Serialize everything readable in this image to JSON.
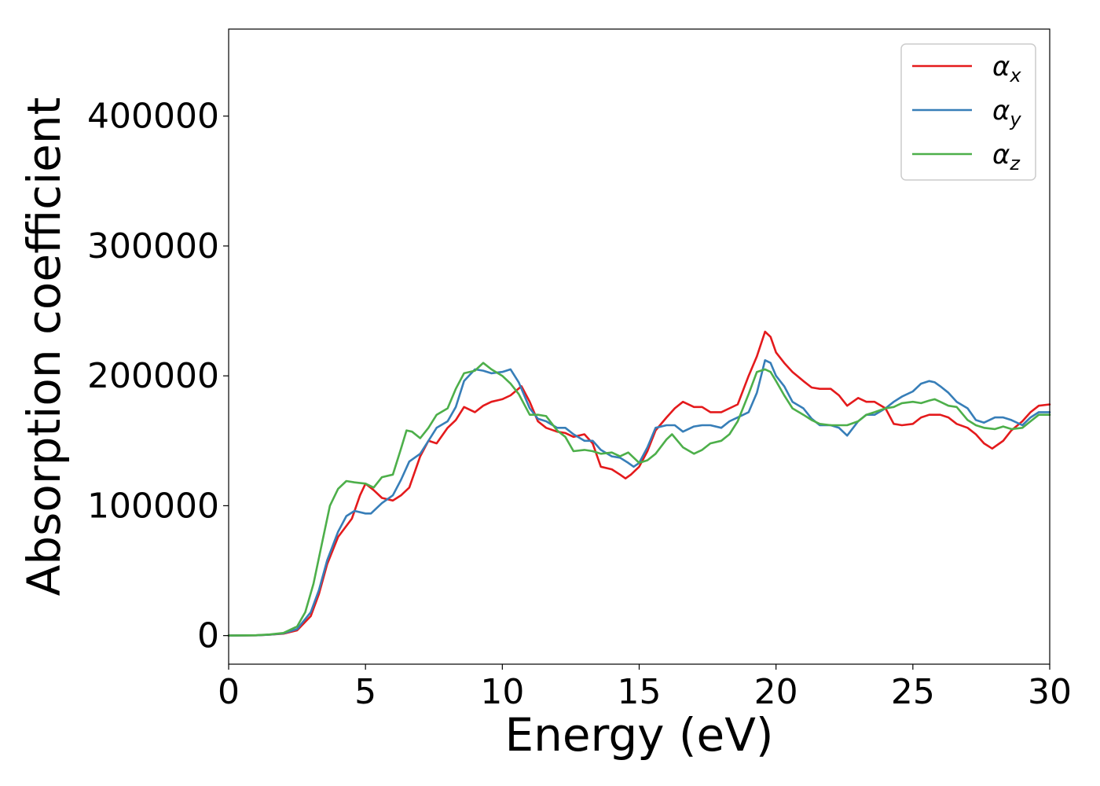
{
  "chart_data": {
    "type": "line",
    "title": "",
    "xlabel": "Energy (eV)",
    "ylabel": "Absorption coefficient",
    "xlim": [
      0,
      30
    ],
    "ylim": [
      -22000,
      467000
    ],
    "xticks": [
      0,
      5,
      10,
      15,
      20,
      25,
      30
    ],
    "yticks": [
      0,
      100000,
      200000,
      300000,
      400000
    ],
    "grid": false,
    "legend_position": "top-right",
    "series": [
      {
        "name": "αx",
        "legend_base": "α",
        "legend_sub": "x",
        "color": "#e41a1c",
        "points": [
          [
            0,
            0
          ],
          [
            1,
            200
          ],
          [
            1.5,
            700
          ],
          [
            2,
            1500
          ],
          [
            2.5,
            4000
          ],
          [
            3,
            15000
          ],
          [
            3.3,
            32000
          ],
          [
            3.6,
            55000
          ],
          [
            4,
            76000
          ],
          [
            4.5,
            90000
          ],
          [
            4.8,
            108000
          ],
          [
            5,
            117000
          ],
          [
            5.3,
            112000
          ],
          [
            5.6,
            106000
          ],
          [
            6,
            104000
          ],
          [
            6.3,
            108000
          ],
          [
            6.6,
            114000
          ],
          [
            7,
            138000
          ],
          [
            7.3,
            150000
          ],
          [
            7.6,
            148000
          ],
          [
            8,
            160000
          ],
          [
            8.3,
            166000
          ],
          [
            8.6,
            176000
          ],
          [
            9,
            172000
          ],
          [
            9.3,
            177000
          ],
          [
            9.6,
            180000
          ],
          [
            10,
            182000
          ],
          [
            10.3,
            185000
          ],
          [
            10.7,
            192000
          ],
          [
            11,
            180000
          ],
          [
            11.3,
            165000
          ],
          [
            11.6,
            160000
          ],
          [
            12,
            157000
          ],
          [
            12.3,
            156000
          ],
          [
            12.6,
            153000
          ],
          [
            13,
            155000
          ],
          [
            13.3,
            148000
          ],
          [
            13.6,
            130000
          ],
          [
            14,
            128000
          ],
          [
            14.3,
            124000
          ],
          [
            14.5,
            121000
          ],
          [
            14.7,
            124000
          ],
          [
            15,
            130000
          ],
          [
            15.3,
            142000
          ],
          [
            15.6,
            158000
          ],
          [
            16,
            168000
          ],
          [
            16.3,
            175000
          ],
          [
            16.6,
            180000
          ],
          [
            17,
            176000
          ],
          [
            17.3,
            176000
          ],
          [
            17.6,
            172000
          ],
          [
            18,
            172000
          ],
          [
            18.3,
            175000
          ],
          [
            18.6,
            178000
          ],
          [
            19,
            200000
          ],
          [
            19.3,
            215000
          ],
          [
            19.6,
            234000
          ],
          [
            19.8,
            230000
          ],
          [
            20,
            218000
          ],
          [
            20.3,
            210000
          ],
          [
            20.6,
            203000
          ],
          [
            21,
            196000
          ],
          [
            21.3,
            191000
          ],
          [
            21.6,
            190000
          ],
          [
            22,
            190000
          ],
          [
            22.3,
            185000
          ],
          [
            22.6,
            177000
          ],
          [
            23,
            183000
          ],
          [
            23.3,
            180000
          ],
          [
            23.6,
            180000
          ],
          [
            24,
            175000
          ],
          [
            24.3,
            163000
          ],
          [
            24.6,
            162000
          ],
          [
            25,
            163000
          ],
          [
            25.3,
            168000
          ],
          [
            25.6,
            170000
          ],
          [
            26,
            170000
          ],
          [
            26.3,
            168000
          ],
          [
            26.6,
            163000
          ],
          [
            27,
            160000
          ],
          [
            27.3,
            155000
          ],
          [
            27.6,
            148000
          ],
          [
            27.9,
            144000
          ],
          [
            28.3,
            150000
          ],
          [
            28.6,
            158000
          ],
          [
            29,
            165000
          ],
          [
            29.3,
            172000
          ],
          [
            29.6,
            177000
          ],
          [
            30,
            178000
          ]
        ]
      },
      {
        "name": "αy",
        "legend_base": "α",
        "legend_sub": "y",
        "color": "#377eb8",
        "points": [
          [
            0,
            0
          ],
          [
            1,
            200
          ],
          [
            1.5,
            700
          ],
          [
            2,
            1700
          ],
          [
            2.5,
            5000
          ],
          [
            3,
            18000
          ],
          [
            3.3,
            35000
          ],
          [
            3.6,
            58000
          ],
          [
            4,
            80000
          ],
          [
            4.3,
            92000
          ],
          [
            4.6,
            96000
          ],
          [
            5,
            94000
          ],
          [
            5.2,
            94000
          ],
          [
            5.6,
            102000
          ],
          [
            6,
            108000
          ],
          [
            6.3,
            120000
          ],
          [
            6.6,
            134000
          ],
          [
            7,
            140000
          ],
          [
            7.3,
            150000
          ],
          [
            7.6,
            160000
          ],
          [
            8,
            165000
          ],
          [
            8.3,
            176000
          ],
          [
            8.6,
            196000
          ],
          [
            9,
            205000
          ],
          [
            9.3,
            204000
          ],
          [
            9.6,
            202000
          ],
          [
            10,
            203000
          ],
          [
            10.3,
            205000
          ],
          [
            10.6,
            195000
          ],
          [
            11,
            175000
          ],
          [
            11.3,
            167000
          ],
          [
            11.6,
            165000
          ],
          [
            12,
            160000
          ],
          [
            12.3,
            160000
          ],
          [
            12.6,
            155000
          ],
          [
            13,
            150000
          ],
          [
            13.3,
            150000
          ],
          [
            13.6,
            143000
          ],
          [
            14,
            138000
          ],
          [
            14.3,
            137000
          ],
          [
            14.6,
            133000
          ],
          [
            14.8,
            130000
          ],
          [
            15,
            133000
          ],
          [
            15.3,
            145000
          ],
          [
            15.6,
            160000
          ],
          [
            16,
            162000
          ],
          [
            16.3,
            162000
          ],
          [
            16.6,
            157000
          ],
          [
            17,
            161000
          ],
          [
            17.3,
            162000
          ],
          [
            17.6,
            162000
          ],
          [
            18,
            160000
          ],
          [
            18.3,
            165000
          ],
          [
            18.6,
            168000
          ],
          [
            19,
            172000
          ],
          [
            19.3,
            187000
          ],
          [
            19.6,
            212000
          ],
          [
            19.8,
            210000
          ],
          [
            20,
            200000
          ],
          [
            20.3,
            192000
          ],
          [
            20.6,
            180000
          ],
          [
            21,
            175000
          ],
          [
            21.3,
            167000
          ],
          [
            21.6,
            162000
          ],
          [
            22,
            162000
          ],
          [
            22.3,
            160000
          ],
          [
            22.6,
            154000
          ],
          [
            23,
            165000
          ],
          [
            23.3,
            170000
          ],
          [
            23.6,
            170000
          ],
          [
            24,
            175000
          ],
          [
            24.3,
            180000
          ],
          [
            24.6,
            184000
          ],
          [
            25,
            188000
          ],
          [
            25.3,
            194000
          ],
          [
            25.6,
            196000
          ],
          [
            25.8,
            195000
          ],
          [
            26,
            192000
          ],
          [
            26.3,
            187000
          ],
          [
            26.6,
            180000
          ],
          [
            27,
            175000
          ],
          [
            27.3,
            166000
          ],
          [
            27.6,
            164000
          ],
          [
            28,
            168000
          ],
          [
            28.3,
            168000
          ],
          [
            28.6,
            166000
          ],
          [
            29,
            162000
          ],
          [
            29.3,
            168000
          ],
          [
            29.6,
            172000
          ],
          [
            30,
            172000
          ]
        ]
      },
      {
        "name": "αz",
        "legend_base": "α",
        "legend_sub": "z",
        "color": "#4daf4a",
        "points": [
          [
            0,
            0
          ],
          [
            1,
            300
          ],
          [
            1.5,
            900
          ],
          [
            2,
            2000
          ],
          [
            2.5,
            7000
          ],
          [
            2.8,
            18000
          ],
          [
            3.1,
            40000
          ],
          [
            3.4,
            70000
          ],
          [
            3.7,
            100000
          ],
          [
            4,
            113000
          ],
          [
            4.3,
            119000
          ],
          [
            4.6,
            118000
          ],
          [
            5,
            117000
          ],
          [
            5.3,
            114000
          ],
          [
            5.6,
            122000
          ],
          [
            6,
            124000
          ],
          [
            6.3,
            144000
          ],
          [
            6.5,
            158000
          ],
          [
            6.7,
            157000
          ],
          [
            7,
            152000
          ],
          [
            7.3,
            160000
          ],
          [
            7.6,
            170000
          ],
          [
            8,
            175000
          ],
          [
            8.3,
            190000
          ],
          [
            8.6,
            202000
          ],
          [
            9,
            204000
          ],
          [
            9.3,
            210000
          ],
          [
            9.6,
            205000
          ],
          [
            10,
            200000
          ],
          [
            10.3,
            194000
          ],
          [
            10.6,
            186000
          ],
          [
            11,
            170000
          ],
          [
            11.3,
            170000
          ],
          [
            11.6,
            169000
          ],
          [
            12,
            158000
          ],
          [
            12.3,
            153000
          ],
          [
            12.6,
            142000
          ],
          [
            13,
            143000
          ],
          [
            13.3,
            142000
          ],
          [
            13.6,
            140000
          ],
          [
            14,
            141000
          ],
          [
            14.3,
            138000
          ],
          [
            14.6,
            141000
          ],
          [
            15,
            133000
          ],
          [
            15.3,
            135000
          ],
          [
            15.6,
            140000
          ],
          [
            16,
            151000
          ],
          [
            16.2,
            155000
          ],
          [
            16.6,
            145000
          ],
          [
            17,
            140000
          ],
          [
            17.3,
            143000
          ],
          [
            17.6,
            148000
          ],
          [
            18,
            150000
          ],
          [
            18.3,
            155000
          ],
          [
            18.6,
            165000
          ],
          [
            19,
            186000
          ],
          [
            19.3,
            203000
          ],
          [
            19.6,
            205000
          ],
          [
            19.8,
            203000
          ],
          [
            20,
            196000
          ],
          [
            20.3,
            185000
          ],
          [
            20.6,
            175000
          ],
          [
            21,
            170000
          ],
          [
            21.3,
            166000
          ],
          [
            21.6,
            163000
          ],
          [
            22,
            162000
          ],
          [
            22.3,
            162000
          ],
          [
            22.6,
            162000
          ],
          [
            23,
            165000
          ],
          [
            23.3,
            170000
          ],
          [
            23.6,
            172000
          ],
          [
            24,
            175000
          ],
          [
            24.3,
            176000
          ],
          [
            24.6,
            179000
          ],
          [
            25,
            180000
          ],
          [
            25.3,
            179000
          ],
          [
            25.6,
            181000
          ],
          [
            25.8,
            182000
          ],
          [
            26,
            180000
          ],
          [
            26.3,
            177000
          ],
          [
            26.6,
            176000
          ],
          [
            27,
            166000
          ],
          [
            27.3,
            162000
          ],
          [
            27.6,
            160000
          ],
          [
            28,
            159000
          ],
          [
            28.3,
            161000
          ],
          [
            28.6,
            159000
          ],
          [
            29,
            160000
          ],
          [
            29.3,
            165000
          ],
          [
            29.6,
            170000
          ],
          [
            30,
            170000
          ]
        ]
      }
    ]
  }
}
